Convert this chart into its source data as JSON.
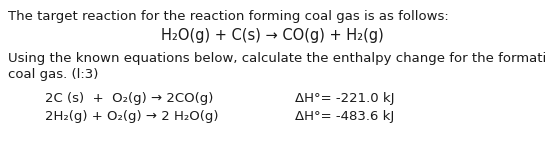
{
  "bg_color": "#ffffff",
  "text_color": "#1a1a1a",
  "line1": "The target reaction for the reaction forming coal gas is as follows:",
  "line2_center": "H₂O(g) + C(s) → CO(g) + H₂(g)",
  "line3": "Using the known equations below, calculate the enthalpy change for the formation of",
  "line4": "coal gas. (l:3)",
  "eq1_left": "2C (s)  +  O₂(g) → 2CO(g)",
  "eq1_right": "ΔH°= -221.0 kJ",
  "eq2_left": "2H₂(g) + O₂(g) → 2 H₂O(g)",
  "eq2_right": "ΔH°= -483.6 kJ",
  "font_size_body": 9.5,
  "font_size_eq": 9.5,
  "font_size_center": 10.5
}
